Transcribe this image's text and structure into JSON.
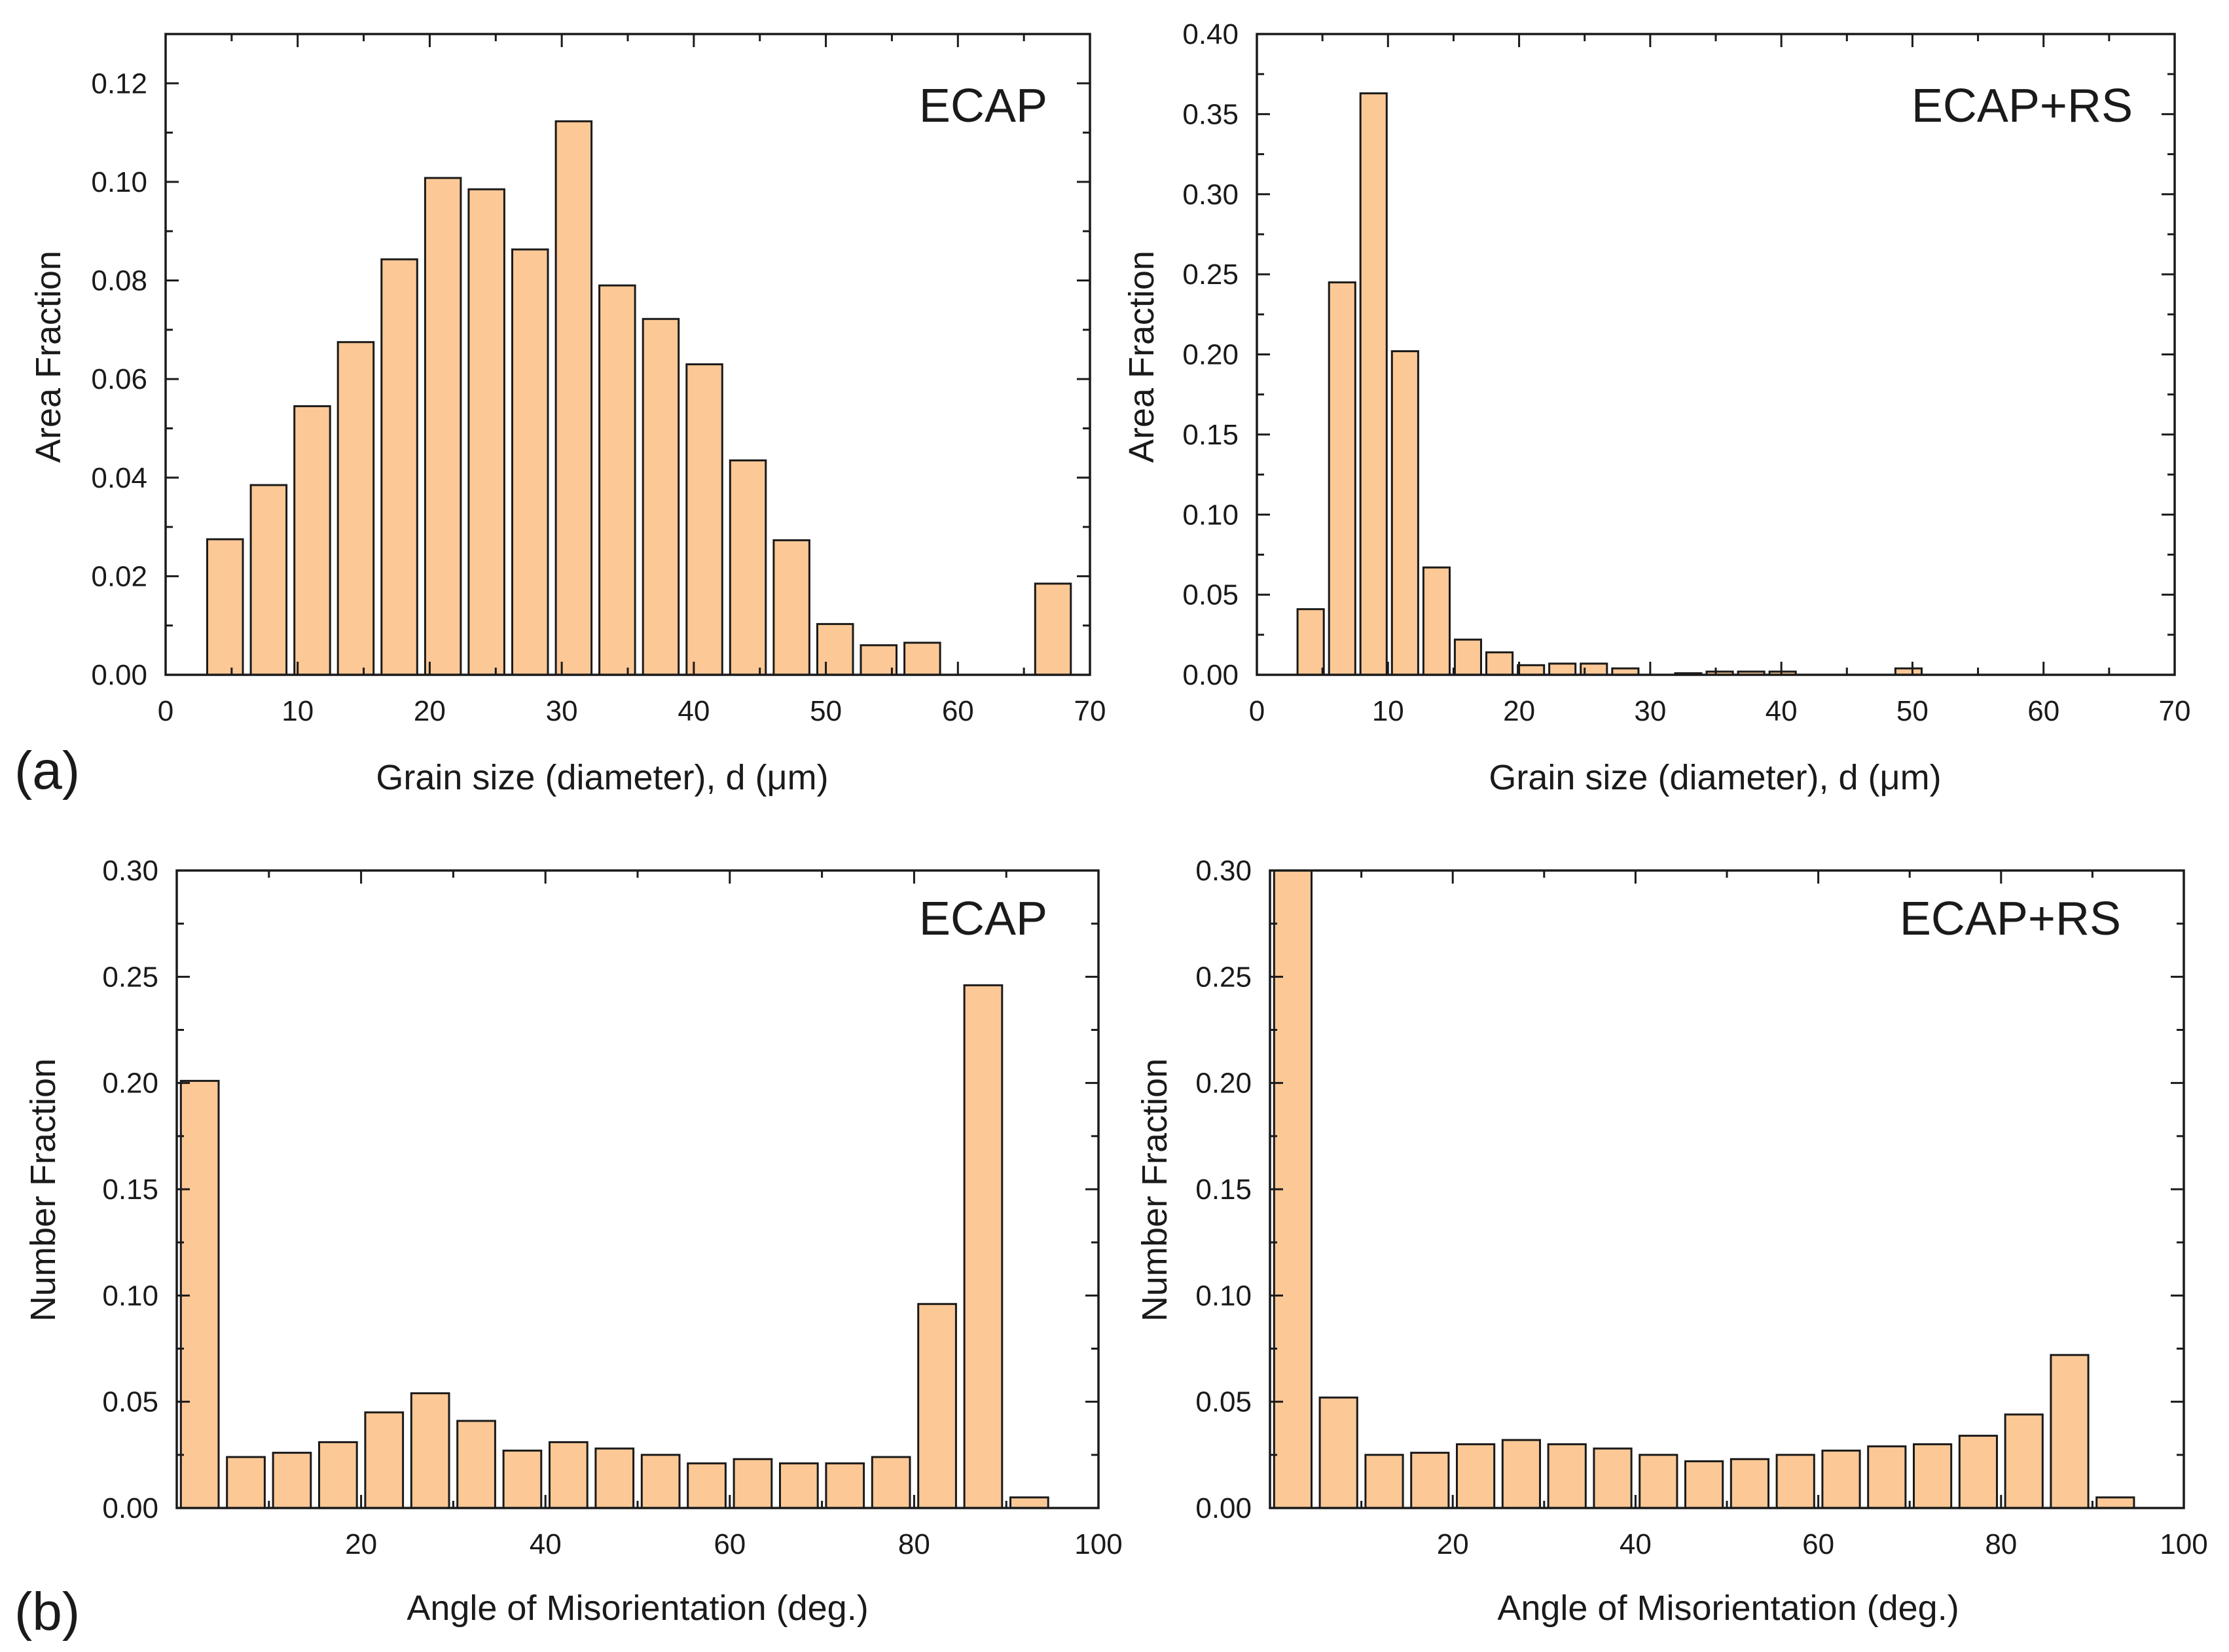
{
  "figure_labels": {
    "a": "(a)",
    "b": "(b)"
  },
  "colors": {
    "bar_fill": "#fcc896",
    "bar_stroke": "#1a1a1a",
    "axis": "#1a1a1a"
  },
  "chart_data": [
    {
      "id": "grain-ecap",
      "type": "bar",
      "title": "ECAP",
      "xlabel": "Grain size (diameter), d (μm)",
      "ylabel": "Area Fraction",
      "xlim": [
        0,
        70
      ],
      "ylim": [
        0,
        0.13
      ],
      "bar_width": 2.7,
      "xticks": [
        0,
        10,
        20,
        30,
        40,
        50,
        60,
        70
      ],
      "xtick_labels": [
        "0",
        "10",
        "20",
        "30",
        "40",
        "50",
        "60",
        "70"
      ],
      "yticks": [
        0,
        0.02,
        0.04,
        0.06,
        0.08,
        0.1,
        0.12
      ],
      "ytick_labels": [
        "0.00",
        "0.02",
        "0.04",
        "0.06",
        "0.08",
        "0.10",
        "0.12"
      ],
      "x": [
        4.5,
        7.8,
        11.1,
        14.4,
        17.7,
        21.0,
        24.3,
        27.6,
        30.9,
        34.2,
        37.5,
        40.8,
        44.1,
        47.4,
        50.7,
        54.0,
        57.3,
        67.2
      ],
      "values": [
        0.0275,
        0.0385,
        0.0545,
        0.0675,
        0.0843,
        0.1008,
        0.0985,
        0.0863,
        0.1123,
        0.079,
        0.0722,
        0.063,
        0.0435,
        0.0273,
        0.0103,
        0.006,
        0.0065,
        0.0185
      ]
    },
    {
      "id": "grain-ecap-rs",
      "type": "bar",
      "title": "ECAP+RS",
      "xlabel": "Grain size (diameter), d (μm)",
      "ylabel": "Area Fraction",
      "xlim": [
        0,
        70
      ],
      "ylim": [
        0,
        0.4
      ],
      "bar_width": 2.0,
      "xticks": [
        0,
        10,
        20,
        30,
        40,
        50,
        60,
        70
      ],
      "xtick_labels": [
        "0",
        "10",
        "20",
        "30",
        "40",
        "50",
        "60",
        "70"
      ],
      "yticks": [
        0,
        0.05,
        0.1,
        0.15,
        0.2,
        0.25,
        0.3,
        0.35,
        0.4
      ],
      "ytick_labels": [
        "0.00",
        "0.05",
        "0.10",
        "0.15",
        "0.20",
        "0.25",
        "0.30",
        "0.35",
        "0.40"
      ],
      "x": [
        4.1,
        6.5,
        8.9,
        11.3,
        13.7,
        16.1,
        18.5,
        20.9,
        23.3,
        25.7,
        28.1,
        32.9,
        35.3,
        37.7,
        40.1,
        49.7
      ],
      "values": [
        0.041,
        0.245,
        0.363,
        0.202,
        0.067,
        0.022,
        0.014,
        0.006,
        0.007,
        0.007,
        0.004,
        0.001,
        0.002,
        0.002,
        0.002,
        0.004
      ]
    },
    {
      "id": "misorientation-ecap",
      "type": "bar",
      "title": "ECAP",
      "xlabel": "Angle of Misorientation (deg.)",
      "ylabel": "Number Fraction",
      "xlim": [
        0,
        100
      ],
      "ylim": [
        0,
        0.3
      ],
      "bar_width": 4.1,
      "xticks": [
        20,
        40,
        60,
        80,
        100
      ],
      "xtick_labels": [
        "20",
        "40",
        "60",
        "80",
        "100"
      ],
      "yticks": [
        0,
        0.05,
        0.1,
        0.15,
        0.2,
        0.25,
        0.3
      ],
      "ytick_labels": [
        "0.00",
        "0.05",
        "0.10",
        "0.15",
        "0.20",
        "0.25",
        "0.30"
      ],
      "x": [
        2.5,
        7.5,
        12.5,
        17.5,
        22.5,
        27.5,
        32.5,
        37.5,
        42.5,
        47.5,
        52.5,
        57.5,
        62.5,
        67.5,
        72.5,
        77.5,
        82.5,
        87.5,
        92.5
      ],
      "values": [
        0.201,
        0.024,
        0.026,
        0.031,
        0.045,
        0.054,
        0.041,
        0.027,
        0.031,
        0.028,
        0.025,
        0.021,
        0.023,
        0.021,
        0.021,
        0.024,
        0.096,
        0.246,
        0.005
      ]
    },
    {
      "id": "misorientation-ecap-rs",
      "type": "bar",
      "title": "ECAP+RS",
      "xlabel": "Angle of Misorientation (deg.)",
      "ylabel": "Number Fraction",
      "xlim": [
        0,
        100
      ],
      "ylim": [
        0,
        0.3
      ],
      "bar_width": 4.1,
      "xticks": [
        20,
        40,
        60,
        80,
        100
      ],
      "xtick_labels": [
        "20",
        "40",
        "60",
        "80",
        "100"
      ],
      "yticks": [
        0,
        0.05,
        0.1,
        0.15,
        0.2,
        0.25,
        0.3
      ],
      "ytick_labels": [
        "0.00",
        "0.05",
        "0.10",
        "0.15",
        "0.20",
        "0.25",
        "0.30"
      ],
      "x": [
        2.5,
        7.5,
        12.5,
        17.5,
        22.5,
        27.5,
        32.5,
        37.5,
        42.5,
        47.5,
        52.5,
        57.5,
        62.5,
        67.5,
        72.5,
        77.5,
        82.5,
        87.5,
        92.5
      ],
      "values": [
        0.3,
        0.052,
        0.025,
        0.026,
        0.03,
        0.032,
        0.03,
        0.028,
        0.025,
        0.022,
        0.023,
        0.025,
        0.027,
        0.029,
        0.03,
        0.034,
        0.044,
        0.072,
        0.005
      ]
    }
  ]
}
